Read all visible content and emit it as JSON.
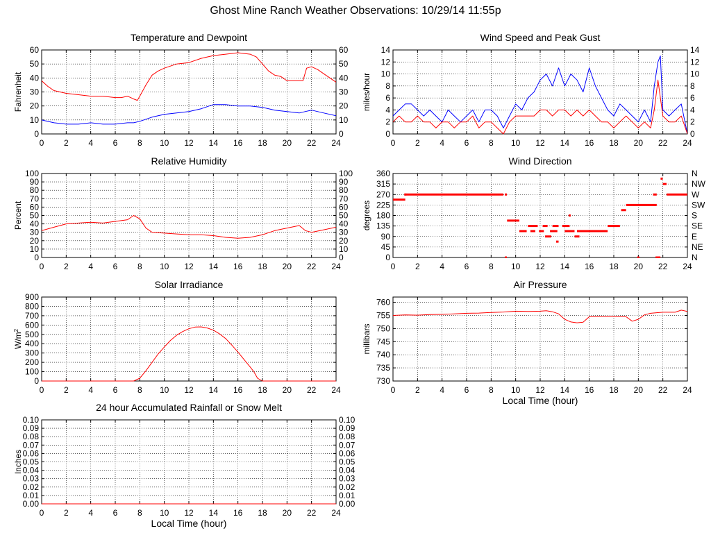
{
  "page": {
    "title": "Ghost Mine Ranch Weather Observations: 10/29/14 11:55p"
  },
  "colors": {
    "red_series": "#ff0000",
    "blue_series": "#0000ff",
    "grid": "#000000"
  },
  "chart_data": [
    {
      "id": "temperature",
      "type": "line",
      "title": "Temperature and Dewpoint",
      "ylabel": "Fahrenheit",
      "xlabel": "",
      "xlim": [
        0,
        24
      ],
      "ylim": [
        0,
        60
      ],
      "xticks": [
        0,
        2,
        4,
        6,
        8,
        10,
        12,
        14,
        16,
        18,
        20,
        22,
        24
      ],
      "yticks": [
        "0",
        "10",
        "20",
        "30",
        "40",
        "50",
        "60"
      ],
      "right_axis": true,
      "grid": true,
      "series": [
        {
          "color": "#ff0000",
          "x": [
            0,
            0.5,
            1,
            2,
            3,
            4,
            5,
            6,
            6.5,
            7,
            7.5,
            7.8,
            8,
            8.5,
            9,
            9.5,
            10,
            11,
            12,
            13,
            14,
            15,
            16,
            17,
            17.5,
            18,
            18.5,
            19,
            19.5,
            20,
            21,
            21.3,
            21.6,
            22,
            22.5,
            23,
            24
          ],
          "y": [
            38,
            34,
            31,
            29,
            28,
            27,
            27,
            26,
            26,
            27,
            25,
            24,
            27,
            35,
            42,
            45,
            47,
            50,
            51,
            54,
            56,
            57,
            58,
            57,
            55,
            50,
            45,
            42,
            41,
            38,
            38,
            38,
            47,
            48,
            46,
            43,
            37
          ]
        },
        {
          "color": "#0000ff",
          "x": [
            0,
            1,
            2,
            3,
            4,
            5,
            6,
            7,
            7.5,
            8,
            9,
            10,
            11,
            12,
            13,
            14,
            15,
            16,
            17,
            18,
            19,
            20,
            21,
            21.5,
            22,
            23,
            24
          ],
          "y": [
            10,
            8,
            7,
            7,
            8,
            7,
            7,
            8,
            8,
            9,
            12,
            14,
            15,
            16,
            18,
            21,
            21,
            20,
            20,
            19,
            17,
            16,
            15,
            16,
            17,
            15,
            13
          ]
        }
      ]
    },
    {
      "id": "wind-speed",
      "type": "line",
      "title": "Wind Speed and Peak Gust",
      "ylabel": "miles/hour",
      "xlabel": "",
      "xlim": [
        0,
        24
      ],
      "ylim": [
        0,
        14
      ],
      "xticks": [
        0,
        2,
        4,
        6,
        8,
        10,
        12,
        14,
        16,
        18,
        20,
        22,
        24
      ],
      "yticks": [
        "0",
        "2",
        "4",
        "6",
        "8",
        "10",
        "12",
        "14"
      ],
      "right_axis": true,
      "grid": true,
      "series": [
        {
          "color": "#0000ff",
          "x": [
            0,
            0.5,
            1,
            1.5,
            2,
            2.5,
            3,
            3.5,
            4,
            4.5,
            5,
            5.5,
            6,
            6.5,
            7,
            7.5,
            8,
            8.5,
            9,
            9.5,
            10,
            10.5,
            11,
            11.5,
            12,
            12.5,
            13,
            13.5,
            14,
            14.5,
            15,
            15.5,
            16,
            16.5,
            17,
            17.5,
            18,
            18.5,
            19,
            19.5,
            20,
            20.5,
            21,
            21.3,
            21.6,
            21.8,
            22,
            22.5,
            23,
            23.5,
            24
          ],
          "y": [
            3,
            4,
            5,
            5,
            4,
            3,
            4,
            3,
            2,
            4,
            3,
            2,
            3,
            4,
            2,
            4,
            4,
            3,
            1,
            3,
            5,
            4,
            6,
            7,
            9,
            10,
            8,
            11,
            8,
            10,
            9,
            7,
            11,
            8,
            6,
            4,
            3,
            5,
            4,
            3,
            2,
            4,
            2,
            8,
            12,
            13,
            4,
            3,
            4,
            5,
            0
          ]
        },
        {
          "color": "#ff0000",
          "x": [
            0,
            0.5,
            1,
            1.5,
            2,
            2.5,
            3,
            3.5,
            4,
            4.5,
            5,
            5.5,
            6,
            6.5,
            7,
            7.5,
            8,
            8.5,
            9,
            9.5,
            10,
            10.5,
            11,
            11.5,
            12,
            12.5,
            13,
            13.5,
            14,
            14.5,
            15,
            15.5,
            16,
            16.5,
            17,
            17.5,
            18,
            18.5,
            19,
            19.5,
            20,
            20.5,
            21,
            21.3,
            21.6,
            21.8,
            22,
            22.5,
            23,
            23.5,
            24
          ],
          "y": [
            2,
            3,
            2,
            2,
            3,
            2,
            2,
            1,
            2,
            2,
            1,
            2,
            2,
            3,
            1,
            2,
            2,
            1,
            0,
            2,
            3,
            3,
            3,
            3,
            4,
            4,
            3,
            4,
            4,
            3,
            4,
            3,
            4,
            3,
            2,
            2,
            1,
            2,
            3,
            2,
            1,
            2,
            1,
            4,
            9,
            6,
            3,
            2,
            2,
            3,
            0
          ]
        }
      ]
    },
    {
      "id": "humidity",
      "type": "line",
      "title": "Relative Humidity",
      "ylabel": "Percent",
      "xlabel": "",
      "xlim": [
        0,
        24
      ],
      "ylim": [
        0,
        100
      ],
      "xticks": [
        0,
        2,
        4,
        6,
        8,
        10,
        12,
        14,
        16,
        18,
        20,
        22,
        24
      ],
      "yticks": [
        "0",
        "10",
        "20",
        "30",
        "40",
        "50",
        "60",
        "70",
        "80",
        "90",
        "100"
      ],
      "right_axis": true,
      "grid": true,
      "series": [
        {
          "color": "#ff0000",
          "x": [
            0,
            1,
            2,
            3,
            4,
            5,
            6,
            7,
            7.5,
            8,
            8.5,
            9,
            10,
            11,
            12,
            13,
            14,
            15,
            16,
            17,
            18,
            19,
            20,
            21,
            21.5,
            22,
            23,
            24
          ],
          "y": [
            32,
            36,
            40,
            41,
            42,
            41,
            43,
            45,
            50,
            46,
            35,
            30,
            29,
            28,
            27,
            27,
            26,
            24,
            23,
            24,
            27,
            32,
            35,
            38,
            32,
            30,
            33,
            36
          ]
        }
      ]
    },
    {
      "id": "wind-direction",
      "type": "scatter",
      "title": "Wind Direction",
      "ylabel": "degrees",
      "xlabel": "",
      "xlim": [
        0,
        24
      ],
      "ylim": [
        0,
        360
      ],
      "xticks": [
        0,
        2,
        4,
        6,
        8,
        10,
        12,
        14,
        16,
        18,
        20,
        22,
        24
      ],
      "yticks": [
        "0",
        "45",
        "90",
        "135",
        "180",
        "225",
        "270",
        "315",
        "360"
      ],
      "right_tick_labels": [
        "N",
        "NE",
        "E",
        "SE",
        "S",
        "SW",
        "W",
        "NW",
        "N"
      ],
      "grid": true,
      "segments": [
        {
          "x": [
            0,
            1
          ],
          "y": 248
        },
        {
          "x": 1,
          "y": 270
        },
        {
          "x": [
            1,
            9
          ],
          "y": 270
        },
        {
          "x": 9.2,
          "y": 270
        },
        {
          "x": 9.2,
          "y": 0
        },
        {
          "x": [
            9.3,
            10.3
          ],
          "y": 158
        },
        {
          "x": [
            10.3,
            10.9
          ],
          "y": 113
        },
        {
          "x": [
            11,
            11.8
          ],
          "y": 135
        },
        {
          "x": [
            11.2,
            11.6
          ],
          "y": 113
        },
        {
          "x": [
            11.9,
            12.3
          ],
          "y": 113
        },
        {
          "x": [
            12.2,
            12.6
          ],
          "y": 135
        },
        {
          "x": [
            12.4,
            12.9
          ],
          "y": 90
        },
        {
          "x": [
            12.8,
            13.4
          ],
          "y": 113
        },
        {
          "x": [
            13,
            13.5
          ],
          "y": 135
        },
        {
          "x": [
            13.3,
            13.5
          ],
          "y": 68
        },
        {
          "x": [
            13.8,
            14.4
          ],
          "y": 135
        },
        {
          "x": [
            14,
            14.8
          ],
          "y": 113
        },
        {
          "x": 14.4,
          "y": 180
        },
        {
          "x": [
            14.8,
            15.2
          ],
          "y": 90
        },
        {
          "x": [
            15,
            17.5
          ],
          "y": 113
        },
        {
          "x": [
            17.5,
            18.5
          ],
          "y": 135
        },
        {
          "x": [
            18.6,
            19
          ],
          "y": 203
        },
        {
          "x": [
            19,
            21.5
          ],
          "y": 225
        },
        {
          "x": 20,
          "y": 0
        },
        {
          "x": [
            21.2,
            21.5
          ],
          "y": 270
        },
        {
          "x": [
            21.4,
            21.8
          ],
          "y": 0
        },
        {
          "x": 21.9,
          "y": 338
        },
        {
          "x": [
            22,
            22.3
          ],
          "y": 315
        },
        {
          "x": [
            22.3,
            24
          ],
          "y": 270
        }
      ]
    },
    {
      "id": "solar",
      "type": "line",
      "title": "Solar Irradiance",
      "ylabel": "W/m",
      "ylabel_sup": "2",
      "xlabel": "",
      "xlim": [
        0,
        24
      ],
      "ylim": [
        0,
        900
      ],
      "xticks": [
        0,
        2,
        4,
        6,
        8,
        10,
        12,
        14,
        16,
        18,
        20,
        22,
        24
      ],
      "yticks": [
        "0",
        "100",
        "200",
        "300",
        "400",
        "500",
        "600",
        "700",
        "800",
        "900"
      ],
      "right_axis": false,
      "grid": true,
      "series": [
        {
          "color": "#ff0000",
          "x": [
            0,
            7.5,
            8,
            8.5,
            9,
            9.5,
            10,
            10.5,
            11,
            11.5,
            12,
            12.5,
            13,
            13.5,
            14,
            14.5,
            15,
            15.5,
            16,
            16.5,
            17,
            17.3,
            17.6,
            18,
            24
          ],
          "y": [
            0,
            0,
            30,
            110,
            200,
            290,
            365,
            435,
            490,
            530,
            560,
            578,
            580,
            568,
            545,
            505,
            455,
            385,
            310,
            230,
            150,
            100,
            30,
            0,
            0
          ]
        }
      ]
    },
    {
      "id": "pressure",
      "type": "line",
      "title": "Air Pressure",
      "ylabel": "millibars",
      "xlabel": "Local Time (hour)",
      "xlim": [
        0,
        24
      ],
      "ylim": [
        730,
        762
      ],
      "xticks": [
        0,
        2,
        4,
        6,
        8,
        10,
        12,
        14,
        16,
        18,
        20,
        22,
        24
      ],
      "yticks": [
        "730",
        "735",
        "740",
        "745",
        "750",
        "755",
        "760"
      ],
      "right_axis": false,
      "grid": true,
      "series": [
        {
          "color": "#ff0000",
          "x": [
            0,
            1,
            2,
            3,
            4,
            5,
            6,
            7,
            8,
            9,
            10,
            11,
            12,
            12.5,
            13,
            13.5,
            14,
            14.5,
            15,
            15.5,
            16,
            17,
            18,
            19,
            19.5,
            20,
            20.5,
            21,
            22,
            23,
            23.5,
            24
          ],
          "y": [
            755,
            755.2,
            755.1,
            755.3,
            755.4,
            755.6,
            755.8,
            755.9,
            756.1,
            756.3,
            756.6,
            756.5,
            756.6,
            756.8,
            756.4,
            755.6,
            753.5,
            752.5,
            752.2,
            752.4,
            754.5,
            754.6,
            754.6,
            754.5,
            752.8,
            753.5,
            755.2,
            755.8,
            756.2,
            756.2,
            757,
            756.5
          ]
        }
      ]
    },
    {
      "id": "rainfall",
      "type": "line",
      "title": "24 hour Accumulated Rainfall or Snow Melt",
      "ylabel": "Inches",
      "xlabel": "Local Time (hour)",
      "xlim": [
        0,
        24
      ],
      "ylim": [
        0,
        0.1
      ],
      "xticks": [
        0,
        2,
        4,
        6,
        8,
        10,
        12,
        14,
        16,
        18,
        20,
        22,
        24
      ],
      "yticks": [
        "0.00",
        "0.01",
        "0.02",
        "0.03",
        "0.04",
        "0.05",
        "0.06",
        "0.07",
        "0.08",
        "0.09",
        "0.10"
      ],
      "right_axis": true,
      "grid": true,
      "series": [
        {
          "color": "#ff0000",
          "x": [
            0,
            24
          ],
          "y": [
            0,
            0
          ]
        }
      ]
    }
  ]
}
